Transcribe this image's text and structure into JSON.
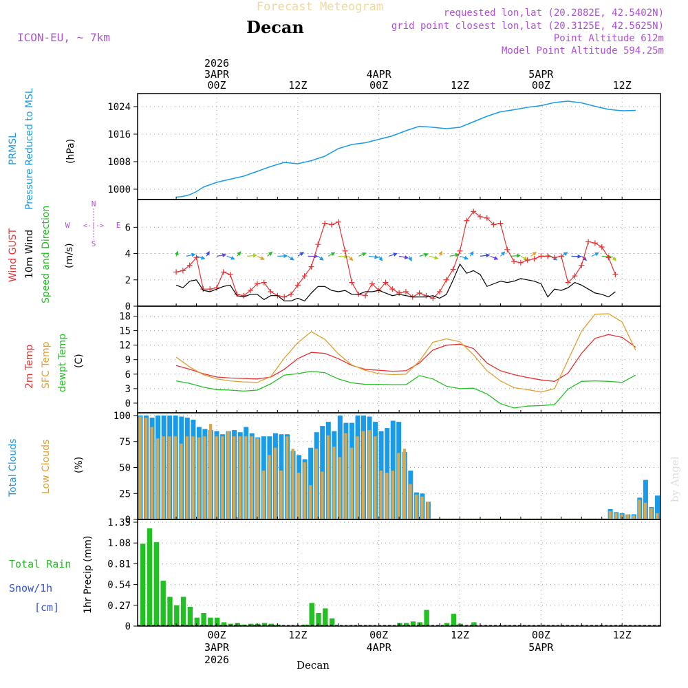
{
  "header": {
    "title": "Forecast Meteogram",
    "location": "Decan",
    "model": "ICON-EU, ~ 7km",
    "requested": "requested lon,lat (20.2882E, 42.5402N)",
    "grid_point": "grid point closest lon,lat (20.3125E, 42.5625N)",
    "point_altitude": "Point Altitude 612m",
    "model_altitude": "Model Point Altitude 594.25m",
    "watermark": "by Angel",
    "footer": "Decan"
  },
  "colors": {
    "blue": "#1a9be8",
    "red": "#e83030",
    "green": "#22c022",
    "orange": "#e0a030",
    "purple": "#b050d8",
    "snow": "#3050e0"
  },
  "time_axis": {
    "hours_total": 65,
    "top_labels": [
      {
        "hour": 6,
        "lines": [
          "2026",
          "3APR",
          "00Z"
        ]
      },
      {
        "hour": 18,
        "lines": [
          "12Z"
        ]
      },
      {
        "hour": 30,
        "lines": [
          "4APR",
          "00Z"
        ]
      },
      {
        "hour": 42,
        "lines": [
          "12Z"
        ]
      },
      {
        "hour": 54,
        "lines": [
          "5APR",
          "00Z"
        ]
      },
      {
        "hour": 66,
        "lines": [
          "12Z"
        ]
      }
    ],
    "bottom_labels": [
      {
        "hour": 6,
        "lines": [
          "00Z",
          "3APR",
          "2026"
        ]
      },
      {
        "hour": 18,
        "lines": [
          "12Z"
        ]
      },
      {
        "hour": 30,
        "lines": [
          "00Z",
          "4APR"
        ]
      },
      {
        "hour": 42,
        "lines": [
          "12Z"
        ]
      },
      {
        "hour": 54,
        "lines": [
          "00Z",
          "5APR"
        ]
      },
      {
        "hour": 66,
        "lines": [
          "12Z"
        ]
      }
    ]
  },
  "chart_data": [
    {
      "type": "line",
      "id": "pressure",
      "ylabel": [
        "PRMSL",
        "Pressure Reduced to MSL",
        "(hPa)"
      ],
      "yticks": [
        1000,
        1008,
        1016,
        1024
      ],
      "ylim": [
        997,
        1027
      ],
      "series": [
        {
          "name": "PRMSL",
          "x": [
            0,
            1,
            2,
            3,
            4,
            5,
            6,
            8,
            10,
            12,
            14,
            16,
            18,
            20,
            22,
            24,
            26,
            28,
            30,
            32,
            34,
            36,
            38,
            40,
            42,
            44,
            46,
            48,
            50,
            52,
            54,
            56,
            58,
            60,
            62,
            64,
            66,
            68
          ],
          "values": [
            997.7,
            997.9,
            998.4,
            999.3,
            1000.6,
            1001.3,
            1002.0,
            1002.9,
            1003.8,
            1005.2,
            1006.6,
            1007.8,
            1007.4,
            1008.3,
            1009.6,
            1011.8,
            1013.0,
            1013.5,
            1014.5,
            1015.5,
            1017.0,
            1018.3,
            1018.0,
            1017.6,
            1018.0,
            1019.6,
            1021.2,
            1022.5,
            1023.1,
            1023.8,
            1024.3,
            1025.2,
            1025.6,
            1025.1,
            1024.1,
            1023.2,
            1022.8,
            1022.9
          ]
        }
      ]
    },
    {
      "type": "line",
      "id": "wind",
      "ylabel": [
        "Wind GUST",
        "10m Wind",
        "Speed and Direction",
        "(m/s)"
      ],
      "yticks": [
        0,
        2,
        4,
        6
      ],
      "ylim": [
        0,
        7.9
      ],
      "compass": {
        "n": "N",
        "s": "S",
        "w": "W",
        "e": "E"
      },
      "series": [
        {
          "name": "Wind GUST",
          "x": [
            0,
            1,
            2,
            3,
            4,
            5,
            6,
            7,
            8,
            9,
            10,
            11,
            12,
            13,
            14,
            15,
            16,
            17,
            18,
            19,
            20,
            21,
            22,
            23,
            24,
            25,
            26,
            27,
            28,
            29,
            30,
            31,
            32,
            33,
            34,
            35,
            36,
            37,
            38,
            39,
            40,
            41,
            42,
            43,
            44,
            45,
            46,
            47,
            48,
            49,
            50,
            51,
            52,
            53,
            54,
            55,
            56,
            57,
            58,
            59,
            60,
            61,
            62,
            63,
            64,
            65
          ],
          "values": [
            2.6,
            2.7,
            3.1,
            3.7,
            1.3,
            1.3,
            1.4,
            2.6,
            2.4,
            0.9,
            0.8,
            1.2,
            1.7,
            1.8,
            1.1,
            0.8,
            0.7,
            0.9,
            1.6,
            2.3,
            3.0,
            4.7,
            6.3,
            6.2,
            6.4,
            4.2,
            1.8,
            0.9,
            0.8,
            1.7,
            1.2,
            1.8,
            1.3,
            1.0,
            1.1,
            0.7,
            1.0,
            0.8,
            0.6,
            1.1,
            2.0,
            2.8,
            4.2,
            6.5,
            7.2,
            6.8,
            6.7,
            6.2,
            6.3,
            4.3,
            3.4,
            3.3,
            3.5,
            3.6,
            3.8,
            3.8,
            3.7,
            3.8,
            1.8,
            2.3,
            3.1,
            4.9,
            4.8,
            4.5,
            3.7,
            2.4
          ]
        },
        {
          "name": "10m Wind",
          "x": [
            0,
            1,
            2,
            3,
            4,
            5,
            6,
            7,
            8,
            9,
            10,
            11,
            12,
            13,
            14,
            15,
            16,
            17,
            18,
            19,
            20,
            21,
            22,
            23,
            24,
            25,
            26,
            27,
            28,
            29,
            30,
            31,
            32,
            33,
            34,
            35,
            36,
            37,
            38,
            39,
            40,
            41,
            42,
            43,
            44,
            45,
            46,
            47,
            48,
            49,
            50,
            51,
            52,
            53,
            54,
            55,
            56,
            57,
            58,
            59,
            60,
            61,
            62,
            63,
            64,
            65
          ],
          "values": [
            1.6,
            1.4,
            1.9,
            2.0,
            1.2,
            1.1,
            1.3,
            1.5,
            1.6,
            0.8,
            0.7,
            0.9,
            0.9,
            0.5,
            0.8,
            0.8,
            0.4,
            0.4,
            0.6,
            0.4,
            1.0,
            1.5,
            1.5,
            1.2,
            1.1,
            1.2,
            0.9,
            0.9,
            1.1,
            1.1,
            1.2,
            1.0,
            0.8,
            0.9,
            0.8,
            0.7,
            0.7,
            0.7,
            0.8,
            0.6,
            0.9,
            2.0,
            3.2,
            2.5,
            2.7,
            2.4,
            1.5,
            1.7,
            1.9,
            1.8,
            1.9,
            2.1,
            2.0,
            1.9,
            1.7,
            0.7,
            1.3,
            1.2,
            1.4,
            1.8,
            1.6,
            1.3,
            1.0,
            0.9,
            0.7,
            1.1
          ]
        }
      ]
    },
    {
      "type": "line",
      "id": "temperature",
      "ylabel": [
        "2m Temp",
        "SFC Temp",
        "dewpt Temp",
        "(C)"
      ],
      "yticks": [
        0,
        3,
        6,
        9,
        12,
        15,
        18
      ],
      "ylim": [
        -2,
        19.5
      ],
      "series": [
        {
          "name": "2m Temp",
          "x": [
            0,
            2,
            4,
            6,
            8,
            10,
            12,
            14,
            16,
            18,
            20,
            22,
            24,
            26,
            28,
            30,
            32,
            34,
            36,
            38,
            40,
            42,
            44,
            46,
            48,
            50,
            52,
            54,
            56,
            58,
            60,
            62,
            64,
            66,
            68
          ],
          "values": [
            7.8,
            7.0,
            6.1,
            5.4,
            5.2,
            5.1,
            5.0,
            5.4,
            7.0,
            9.2,
            10.5,
            10.3,
            9.2,
            7.8,
            7.0,
            6.8,
            6.6,
            6.7,
            8.3,
            11.0,
            12.0,
            12.2,
            11.3,
            8.3,
            6.7,
            5.9,
            5.3,
            4.8,
            4.5,
            6.2,
            10.3,
            13.4,
            14.2,
            13.6,
            11.6
          ]
        },
        {
          "name": "SFC Temp",
          "x": [
            0,
            2,
            4,
            6,
            8,
            10,
            12,
            14,
            16,
            18,
            20,
            22,
            24,
            26,
            28,
            30,
            32,
            34,
            36,
            38,
            40,
            42,
            44,
            46,
            48,
            50,
            52,
            54,
            56,
            58,
            60,
            62,
            64,
            66,
            68
          ],
          "values": [
            9.5,
            7.5,
            5.9,
            5.0,
            4.6,
            4.4,
            4.3,
            5.5,
            9.3,
            12.5,
            14.8,
            13.2,
            10.2,
            7.9,
            6.8,
            6.1,
            5.9,
            6.0,
            8.7,
            12.6,
            13.3,
            12.7,
            10.0,
            6.7,
            4.6,
            3.2,
            2.8,
            2.3,
            3.0,
            8.9,
            14.9,
            18.4,
            18.5,
            16.8,
            11.0
          ]
        },
        {
          "name": "dewpt Temp",
          "x": [
            0,
            2,
            4,
            6,
            8,
            10,
            12,
            14,
            16,
            18,
            20,
            22,
            24,
            26,
            28,
            30,
            32,
            34,
            36,
            38,
            40,
            42,
            44,
            46,
            48,
            50,
            52,
            54,
            56,
            58,
            60,
            62,
            64,
            66,
            68
          ],
          "values": [
            4.6,
            4.1,
            3.3,
            2.8,
            2.7,
            2.5,
            2.7,
            4.0,
            5.8,
            6.1,
            6.6,
            6.3,
            5.0,
            4.2,
            3.9,
            3.9,
            3.8,
            3.8,
            5.7,
            5.0,
            3.5,
            3.0,
            3.1,
            1.9,
            -0.1,
            -1.0,
            -0.6,
            -0.5,
            -0.3,
            2.9,
            4.5,
            4.6,
            4.5,
            4.3,
            5.8
          ]
        }
      ]
    },
    {
      "type": "bar",
      "id": "clouds",
      "ylabel": [
        "Total Clouds",
        "Low Clouds",
        "(%)"
      ],
      "yticks": [
        0,
        25,
        50,
        75,
        100
      ],
      "ylim": [
        0,
        100
      ],
      "start_hour": 0,
      "series": [
        {
          "name": "Total Clouds",
          "values": [
            100,
            100,
            98,
            100,
            100,
            100,
            100,
            99,
            98,
            96,
            89,
            87,
            86,
            85,
            82,
            85,
            86,
            84,
            89,
            83,
            79,
            80,
            80,
            83,
            82,
            82,
            66,
            62,
            58,
            69,
            84,
            90,
            94,
            85,
            100,
            93,
            93,
            100,
            100,
            99,
            94,
            85,
            88,
            95,
            94,
            65,
            47,
            26,
            25,
            17,
            0,
            0,
            0,
            0,
            0,
            0,
            0,
            0,
            0,
            0,
            0,
            0,
            0,
            0,
            0,
            0,
            0,
            0,
            0,
            0,
            0,
            0,
            0,
            0,
            0,
            0,
            0,
            0,
            0,
            0,
            10,
            7,
            6,
            5,
            5,
            21,
            38,
            12,
            23
          ]
        },
        {
          "name": "Low Clouds",
          "values": [
            99,
            98,
            89,
            78,
            80,
            80,
            80,
            73,
            80,
            80,
            79,
            80,
            92,
            80,
            80,
            85,
            80,
            80,
            80,
            80,
            78,
            47,
            62,
            69,
            47,
            80,
            68,
            45,
            55,
            33,
            68,
            46,
            81,
            70,
            60,
            83,
            69,
            80,
            85,
            86,
            80,
            47,
            45,
            47,
            64,
            68,
            34,
            24,
            22,
            17,
            0,
            0,
            0,
            0,
            0,
            0,
            0,
            0,
            0,
            0,
            0,
            0,
            0,
            0,
            0,
            0,
            0,
            0,
            0,
            0,
            0,
            0,
            0,
            0,
            0,
            0,
            0,
            0,
            0,
            0,
            8,
            6,
            5,
            5,
            4,
            19,
            16,
            11,
            6
          ]
        }
      ]
    },
    {
      "type": "bar",
      "id": "precip",
      "ylabel": [
        "1hr Precip (mm)"
      ],
      "left_labels": {
        "rain": "Total  Rain",
        "snow": "Snow/1h",
        "snow_unit": "[cm]"
      },
      "yticks": [
        0,
        0.27,
        0.54,
        0.81,
        1.08,
        1.35
      ],
      "ytick_labels": [
        "0",
        "0.27",
        "0.54",
        "0.81",
        "1.08",
        "1.35"
      ],
      "ylim": [
        0,
        1.35
      ],
      "start_hour": 0,
      "series": [
        {
          "name": "Total Rain",
          "values": [
            1.07,
            1.27,
            1.09,
            0.59,
            0.38,
            0.27,
            0.38,
            0.25,
            0.11,
            0.17,
            0.11,
            0.11,
            0.05,
            0.03,
            0.04,
            0.02,
            0.03,
            0.03,
            0.04,
            0.03,
            0.02,
            0,
            0,
            0,
            0.02,
            0.3,
            0.17,
            0.23,
            0.1,
            0,
            0,
            0,
            0,
            0,
            0,
            0,
            0,
            0,
            0.04,
            0.04,
            0.06,
            0.05,
            0.21,
            0,
            0,
            0.04,
            0.16,
            0.03,
            0,
            0.05,
            0,
            0,
            0,
            0,
            0,
            0,
            0,
            0,
            0,
            0,
            0,
            0,
            0,
            0,
            0,
            0
          ]
        }
      ]
    }
  ]
}
